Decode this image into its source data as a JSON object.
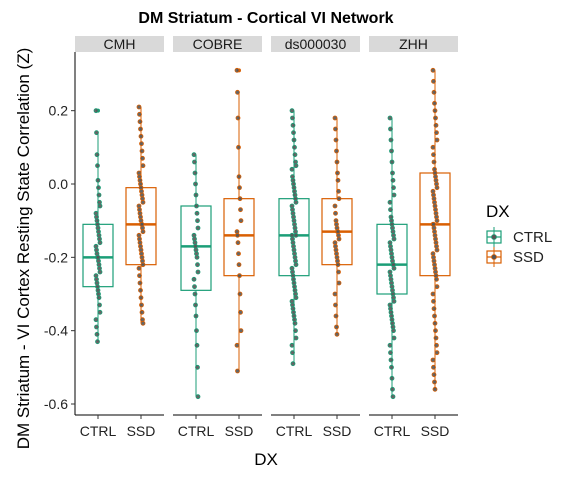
{
  "chart_data": {
    "type": "boxplot",
    "title": "DM Striatum - Cortical VI Network",
    "xlabel": "DX",
    "ylabel": "DM Striatum - VI Cortex Resting State Correlation (Z)",
    "ylim": [
      -0.63,
      0.36
    ],
    "yticks": [
      -0.6,
      -0.4,
      -0.2,
      0.0,
      0.2
    ],
    "ytick_labels": [
      "-0.6",
      "-0.4",
      "-0.2",
      "0.0",
      "0.2"
    ],
    "categories": [
      "CTRL",
      "SSD"
    ],
    "legend": {
      "title": "DX",
      "position": "right",
      "entries": [
        "CTRL",
        "SSD"
      ]
    },
    "colors": {
      "CTRL": "#1b9e77",
      "SSD": "#d95f02",
      "point": "#555555",
      "strip": "#d9d9d9"
    },
    "grid": false,
    "facets": [
      {
        "name": "CMH",
        "boxes": [
          {
            "group": "CTRL",
            "q1": -0.28,
            "median": -0.2,
            "q3": -0.11,
            "whisker_low": -0.43,
            "whisker_high": 0.14,
            "outliers": [
              0.2
            ],
            "points": [
              0.2,
              0.14,
              0.08,
              0.05,
              0.01,
              -0.01,
              -0.03,
              -0.05,
              -0.06,
              -0.08,
              -0.09,
              -0.1,
              -0.11,
              -0.12,
              -0.13,
              -0.14,
              -0.15,
              -0.16,
              -0.17,
              -0.18,
              -0.19,
              -0.2,
              -0.2,
              -0.21,
              -0.22,
              -0.23,
              -0.24,
              -0.25,
              -0.26,
              -0.27,
              -0.28,
              -0.29,
              -0.3,
              -0.31,
              -0.33,
              -0.35,
              -0.37,
              -0.39,
              -0.41,
              -0.43
            ]
          },
          {
            "group": "SSD",
            "q1": -0.22,
            "median": -0.11,
            "q3": -0.01,
            "whisker_low": -0.38,
            "whisker_high": 0.21,
            "outliers": [],
            "points": [
              0.21,
              0.19,
              0.17,
              0.15,
              0.13,
              0.11,
              0.09,
              0.07,
              0.05,
              0.03,
              0.02,
              0.01,
              0.0,
              -0.01,
              -0.02,
              -0.03,
              -0.04,
              -0.05,
              -0.06,
              -0.07,
              -0.08,
              -0.09,
              -0.1,
              -0.11,
              -0.11,
              -0.12,
              -0.13,
              -0.14,
              -0.15,
              -0.16,
              -0.17,
              -0.18,
              -0.19,
              -0.2,
              -0.21,
              -0.22,
              -0.23,
              -0.25,
              -0.27,
              -0.29,
              -0.31,
              -0.33,
              -0.35,
              -0.37,
              -0.38
            ]
          }
        ]
      },
      {
        "name": "COBRE",
        "boxes": [
          {
            "group": "CTRL",
            "q1": -0.29,
            "median": -0.17,
            "q3": -0.06,
            "whisker_low": -0.58,
            "whisker_high": 0.08,
            "outliers": [],
            "points": [
              0.08,
              0.06,
              0.03,
              0.0,
              -0.03,
              -0.06,
              -0.08,
              -0.1,
              -0.12,
              -0.14,
              -0.15,
              -0.16,
              -0.17,
              -0.18,
              -0.19,
              -0.2,
              -0.22,
              -0.24,
              -0.26,
              -0.28,
              -0.3,
              -0.33,
              -0.36,
              -0.4,
              -0.44,
              -0.5,
              -0.58
            ]
          },
          {
            "group": "SSD",
            "q1": -0.25,
            "median": -0.14,
            "q3": -0.04,
            "whisker_low": -0.51,
            "whisker_high": 0.25,
            "outliers": [
              0.31
            ],
            "points": [
              0.31,
              0.25,
              0.18,
              0.1,
              0.02,
              -0.01,
              -0.04,
              -0.07,
              -0.1,
              -0.13,
              -0.14,
              -0.16,
              -0.19,
              -0.22,
              -0.25,
              -0.3,
              -0.35,
              -0.4,
              -0.44,
              -0.51
            ]
          }
        ]
      },
      {
        "name": "ds000030",
        "boxes": [
          {
            "group": "CTRL",
            "q1": -0.25,
            "median": -0.14,
            "q3": -0.04,
            "whisker_low": -0.49,
            "whisker_high": 0.2,
            "outliers": [],
            "points": [
              0.2,
              0.18,
              0.16,
              0.14,
              0.12,
              0.1,
              0.08,
              0.06,
              0.05,
              0.04,
              0.02,
              0.01,
              0.0,
              -0.01,
              -0.02,
              -0.03,
              -0.04,
              -0.05,
              -0.06,
              -0.07,
              -0.08,
              -0.09,
              -0.1,
              -0.11,
              -0.12,
              -0.13,
              -0.14,
              -0.14,
              -0.15,
              -0.16,
              -0.17,
              -0.18,
              -0.19,
              -0.2,
              -0.21,
              -0.22,
              -0.23,
              -0.24,
              -0.25,
              -0.26,
              -0.27,
              -0.28,
              -0.29,
              -0.3,
              -0.31,
              -0.32,
              -0.33,
              -0.34,
              -0.35,
              -0.36,
              -0.37,
              -0.38,
              -0.4,
              -0.42,
              -0.44,
              -0.46,
              -0.49
            ]
          },
          {
            "group": "SSD",
            "q1": -0.22,
            "median": -0.13,
            "q3": -0.04,
            "whisker_low": -0.41,
            "whisker_high": 0.18,
            "outliers": [],
            "points": [
              0.18,
              0.15,
              0.12,
              0.09,
              0.06,
              0.03,
              0.01,
              -0.02,
              -0.04,
              -0.06,
              -0.08,
              -0.1,
              -0.11,
              -0.12,
              -0.13,
              -0.13,
              -0.14,
              -0.15,
              -0.16,
              -0.17,
              -0.18,
              -0.19,
              -0.2,
              -0.21,
              -0.22,
              -0.24,
              -0.27,
              -0.3,
              -0.33,
              -0.36,
              -0.39,
              -0.41
            ]
          }
        ]
      },
      {
        "name": "ZHH",
        "boxes": [
          {
            "group": "CTRL",
            "q1": -0.3,
            "median": -0.22,
            "q3": -0.11,
            "whisker_low": -0.58,
            "whisker_high": 0.18,
            "outliers": [],
            "points": [
              0.18,
              0.15,
              0.12,
              0.09,
              0.06,
              0.03,
              0.01,
              -0.01,
              -0.03,
              -0.05,
              -0.07,
              -0.09,
              -0.1,
              -0.11,
              -0.12,
              -0.13,
              -0.14,
              -0.15,
              -0.16,
              -0.17,
              -0.18,
              -0.19,
              -0.2,
              -0.21,
              -0.22,
              -0.22,
              -0.23,
              -0.24,
              -0.25,
              -0.26,
              -0.27,
              -0.28,
              -0.29,
              -0.3,
              -0.31,
              -0.32,
              -0.33,
              -0.34,
              -0.35,
              -0.36,
              -0.37,
              -0.38,
              -0.39,
              -0.4,
              -0.42,
              -0.44,
              -0.46,
              -0.48,
              -0.5,
              -0.53,
              -0.56,
              -0.58
            ]
          },
          {
            "group": "SSD",
            "q1": -0.25,
            "median": -0.11,
            "q3": 0.03,
            "whisker_low": -0.56,
            "whisker_high": 0.31,
            "outliers": [],
            "points": [
              0.31,
              0.28,
              0.25,
              0.22,
              0.2,
              0.18,
              0.16,
              0.14,
              0.12,
              0.1,
              0.08,
              0.06,
              0.04,
              0.03,
              0.02,
              0.01,
              0.0,
              -0.01,
              -0.02,
              -0.03,
              -0.04,
              -0.05,
              -0.06,
              -0.07,
              -0.08,
              -0.09,
              -0.1,
              -0.11,
              -0.11,
              -0.12,
              -0.13,
              -0.14,
              -0.15,
              -0.16,
              -0.17,
              -0.18,
              -0.19,
              -0.2,
              -0.21,
              -0.22,
              -0.23,
              -0.24,
              -0.25,
              -0.26,
              -0.28,
              -0.3,
              -0.32,
              -0.34,
              -0.36,
              -0.38,
              -0.4,
              -0.42,
              -0.44,
              -0.46,
              -0.48,
              -0.5,
              -0.52,
              -0.54,
              -0.56
            ]
          }
        ]
      }
    ]
  }
}
